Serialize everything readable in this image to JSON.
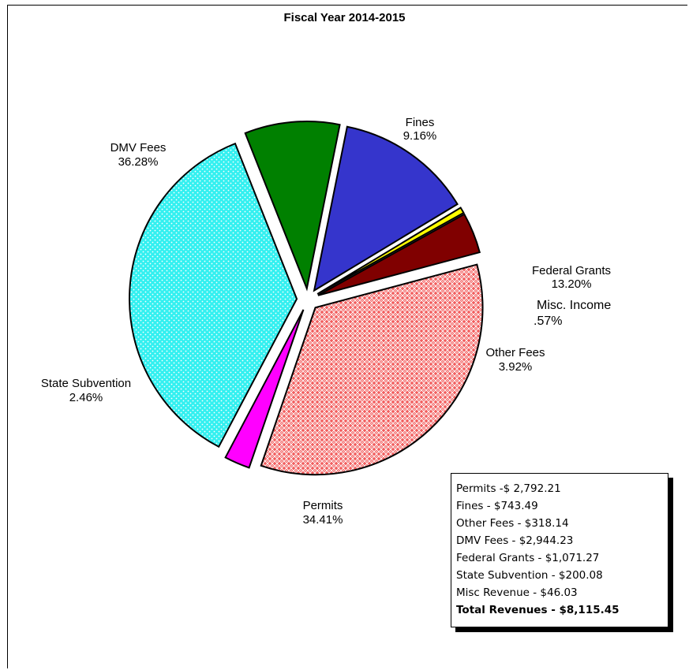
{
  "chart_data": {
    "type": "pie",
    "title": "Fiscal Year 2014-2015",
    "start_angle_deg": -21.6,
    "slices": [
      {
        "name": "Fines",
        "pct_label": "9.16%",
        "value": 9.16,
        "color": "#008000",
        "pattern": "solid",
        "label_lines": [
          "Fines",
          "9.16%"
        ]
      },
      {
        "name": "Federal Grants",
        "pct_label": "13.20%",
        "value": 13.2,
        "color": "#3535CC",
        "pattern": "solid",
        "label_lines": [
          "Federal  Grants",
          "13.20%"
        ]
      },
      {
        "name": "Misc. Income",
        "pct_label": ".57%",
        "value": 0.57,
        "color": "#FFFF00",
        "pattern": "solid",
        "label_lines": [
          "Misc. Income",
          ".57%"
        ]
      },
      {
        "name": "Other Fees",
        "pct_label": "3.92%",
        "value": 3.92,
        "color": "#800000",
        "pattern": "solid",
        "label_lines": [
          "Other Fees",
          "3.92%"
        ]
      },
      {
        "name": "Permits",
        "pct_label": "34.41%",
        "value": 34.41,
        "color": "#F25C5C",
        "pattern": "lattice",
        "label_lines": [
          "Permits",
          "34.41%"
        ]
      },
      {
        "name": "State Subvention",
        "pct_label": "2.46%",
        "value": 2.46,
        "color": "#FF00FF",
        "pattern": "solid",
        "label_lines": [
          "State Subvention",
          "2.46%"
        ]
      },
      {
        "name": "DMV Fees",
        "pct_label": "36.28%",
        "value": 36.28,
        "color": "#33F0F0",
        "pattern": "dots",
        "label_lines": [
          "DMV Fees",
          "36.28%"
        ]
      }
    ],
    "legend": {
      "position": "bottom-right",
      "lines": [
        "Permits -$ 2,792.21",
        "Fines - $743.49",
        "Other Fees - $318.14",
        "DMV Fees - $2,944.23",
        "Federal Grants - $1,071.27",
        "State Subvention - $200.08",
        "Misc Revenue - $46.03"
      ],
      "total_line": "Total Revenues - $8,115.45"
    }
  }
}
